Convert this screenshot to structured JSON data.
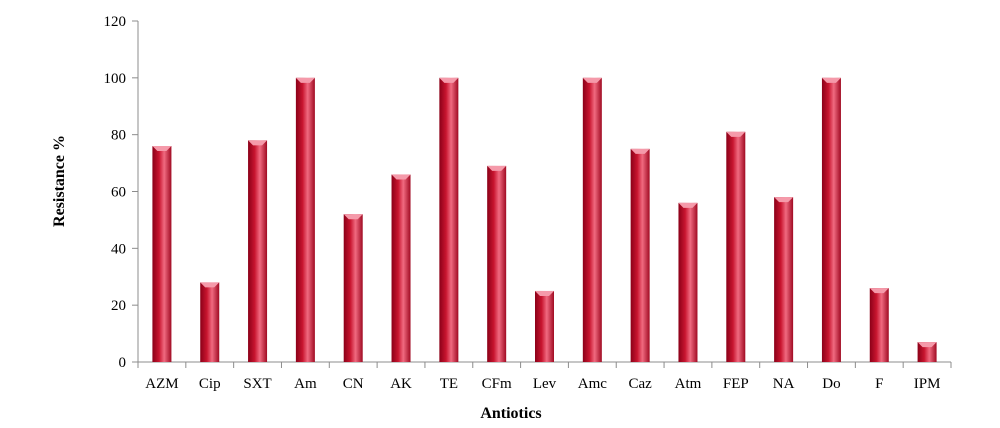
{
  "chart_data": {
    "type": "bar",
    "categories": [
      "AZM",
      "Cip",
      "SXT",
      "Am",
      "CN",
      "AK",
      "TE",
      "CFm",
      "Lev",
      "Amc",
      "Caz",
      "Atm",
      "FEP",
      "NA",
      "Do",
      "F",
      "IPM"
    ],
    "values": [
      76,
      28,
      78,
      100,
      52,
      66,
      100,
      69,
      25,
      100,
      75,
      56,
      81,
      58,
      100,
      26,
      7
    ],
    "xlabel": "Antiotics",
    "ylabel": "Resistance %",
    "ylim": [
      0,
      120
    ],
    "yticks": [
      0,
      20,
      40,
      60,
      80,
      100,
      120
    ],
    "grid": false,
    "legend": "none",
    "colors": {
      "bar_dark": "#8b0018",
      "bar_mid": "#d6203c",
      "bar_light": "#f06a80",
      "bar_top": "#f59aaa",
      "axis": "#8c8c8c"
    }
  }
}
